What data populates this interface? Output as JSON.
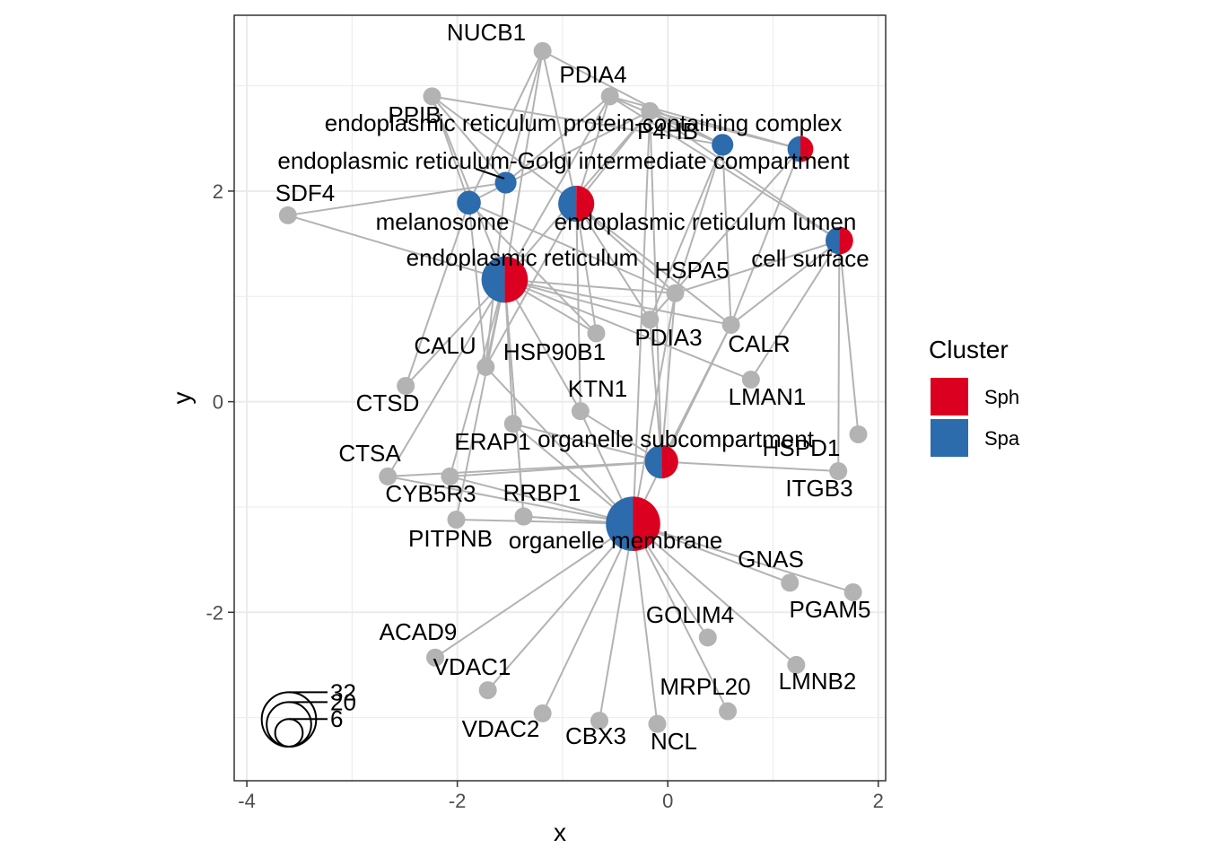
{
  "chart_data": {
    "type": "scatter",
    "subtype": "network",
    "xlabel": "x",
    "ylabel": "y",
    "xlim": [
      -4.12,
      2.07
    ],
    "ylim": [
      -3.6,
      3.67
    ],
    "x_ticks": [
      -4,
      -2,
      0,
      2
    ],
    "y_ticks": [
      -2,
      0,
      2
    ],
    "x_tick_labels": [
      "-4",
      "-2",
      "0",
      "2"
    ],
    "y_tick_labels": [
      "-2",
      "0",
      "2"
    ],
    "grid": true,
    "legend": {
      "title": "Cluster",
      "placement": "right",
      "entries": [
        {
          "name": "Sph",
          "color": "#DC0020"
        },
        {
          "name": "Spa",
          "color": "#2C6BAC"
        }
      ]
    },
    "size_legend": {
      "values": [
        6,
        20,
        32
      ],
      "labels": [
        "6",
        "20",
        "32"
      ]
    },
    "colors": {
      "gene": "#B3B3B3",
      "edge": "#B3B3B3",
      "Sph": "#DC0020",
      "Spa": "#2C6BAC",
      "grid_major": "#EBEBEB",
      "panel_border": "#333333"
    },
    "categories": [
      {
        "label": "endoplasmic reticulum protein-containing complex",
        "x": 0.52,
        "y": 2.44,
        "size": 3,
        "sph": 0,
        "spa": 1
      },
      {
        "label": "endoplasmic reticulum-Golgi intermediate compartment",
        "x": -1.54,
        "y": 2.08,
        "size": 3,
        "sph": 0,
        "spa": 1
      },
      {
        "label": "melanosome",
        "x": -1.89,
        "y": 1.89,
        "size": 4,
        "sph": 0,
        "spa": 1
      },
      {
        "label": "endoplasmic reticulum lumen",
        "x": -0.87,
        "y": 1.88,
        "size": 12,
        "sph": 0.5,
        "spa": 0.5
      },
      {
        "label": "endoplasmic reticulum",
        "x": -1.55,
        "y": 1.16,
        "size": 22,
        "sph": 0.5,
        "spa": 0.5
      },
      {
        "label": "cell surface",
        "x": 1.63,
        "y": 1.53,
        "size": 6,
        "sph": 0.5,
        "spa": 0.5
      },
      {
        "label": "organelle subcompartment",
        "x": -0.06,
        "y": -0.57,
        "size": 10,
        "sph": 0.5,
        "spa": 0.5
      },
      {
        "label": "organelle membrane",
        "x": -0.33,
        "y": -1.16,
        "size": 32,
        "sph": 0.5,
        "spa": 0.5
      },
      {
        "label": "",
        "x": 1.26,
        "y": 2.4,
        "size": 5,
        "sph": 0.5,
        "spa": 0.5
      }
    ],
    "genes": [
      {
        "label": "NUCB1",
        "x": -1.19,
        "y": 3.33
      },
      {
        "label": "PDIA4",
        "x": -0.55,
        "y": 2.9
      },
      {
        "label": "PPIB",
        "x": -2.24,
        "y": 2.9
      },
      {
        "label": "P4HB",
        "x": -0.17,
        "y": 2.76
      },
      {
        "label": "SDF4",
        "x": -3.61,
        "y": 1.77
      },
      {
        "label": "HSPA5",
        "x": 0.07,
        "y": 1.03
      },
      {
        "label": "PDIA3",
        "x": -0.17,
        "y": 0.78
      },
      {
        "label": "CALR",
        "x": 0.6,
        "y": 0.73
      },
      {
        "label": "",
        "x": -0.68,
        "y": 0.65
      },
      {
        "label": "CALU",
        "x": -1.73,
        "y": 0.33
      },
      {
        "label": "HSP90B1",
        "x": -2.49,
        "y": 0.15
      },
      {
        "label": "LMAN1",
        "x": 0.79,
        "y": 0.21
      },
      {
        "label": "KTN1",
        "x": -0.83,
        "y": -0.09
      },
      {
        "label": "CTSD",
        "x": -1.47,
        "y": -0.21
      },
      {
        "label": "HSPD1",
        "x": 1.81,
        "y": -0.31
      },
      {
        "label": "CTSA",
        "x": -2.66,
        "y": -0.71
      },
      {
        "label": "ERAP1",
        "x": -2.07,
        "y": -0.71
      },
      {
        "label": "ITGB3",
        "x": 1.62,
        "y": -0.66
      },
      {
        "label": "CYB5R3",
        "x": -2.01,
        "y": -1.12
      },
      {
        "label": "RRBP1",
        "x": -1.37,
        "y": -1.09
      },
      {
        "label": "PITPNB",
        "x": -1.37,
        "y": -1.09
      },
      {
        "label": "GNAS",
        "x": 1.16,
        "y": -1.72
      },
      {
        "label": "PGAM5",
        "x": 1.76,
        "y": -1.81
      },
      {
        "label": "GOLIM4",
        "x": 0.38,
        "y": -2.24
      },
      {
        "label": "ACAD9",
        "x": -2.21,
        "y": -2.43
      },
      {
        "label": "LMNB2",
        "x": 1.22,
        "y": -2.5
      },
      {
        "label": "VDAC1",
        "x": -1.71,
        "y": -2.74
      },
      {
        "label": "MRPL20",
        "x": 0.57,
        "y": -2.94
      },
      {
        "label": "VDAC2",
        "x": -1.19,
        "y": -2.96
      },
      {
        "label": "CBX3",
        "x": -0.65,
        "y": -3.03
      },
      {
        "label": "NCL",
        "x": -0.1,
        "y": -3.06
      }
    ]
  }
}
